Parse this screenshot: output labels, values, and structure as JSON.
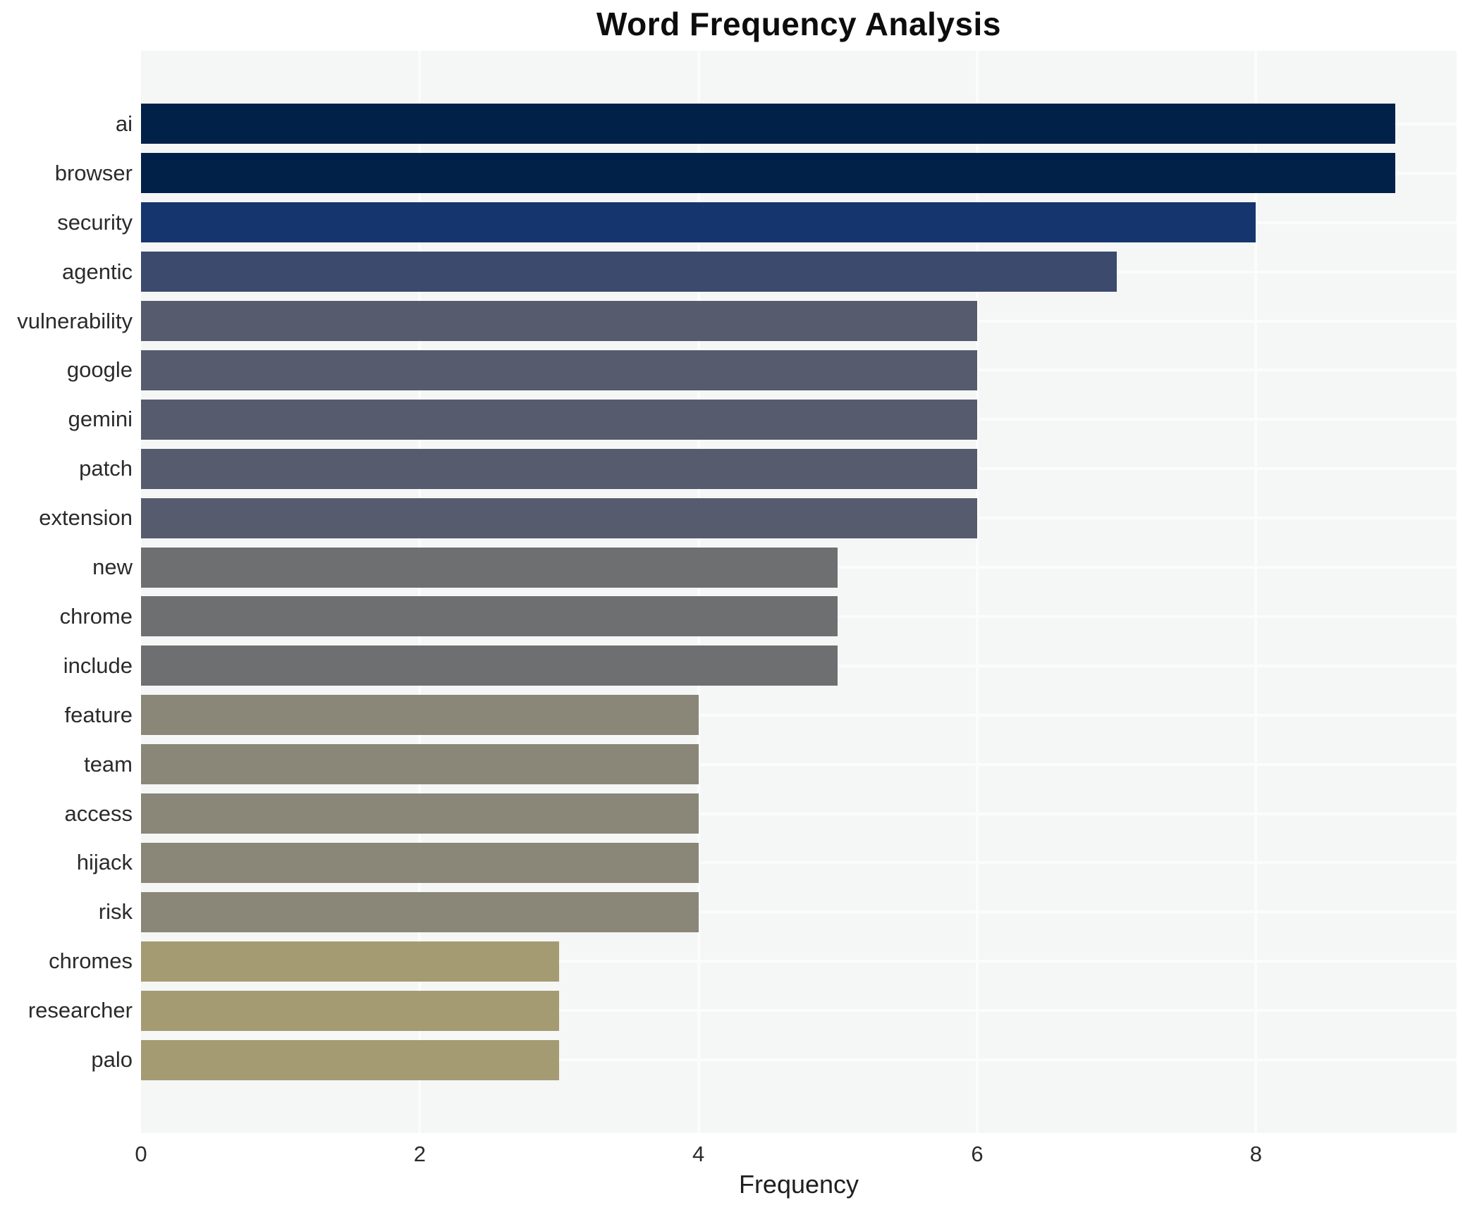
{
  "chart_data": {
    "type": "bar",
    "orientation": "horizontal",
    "title": "Word Frequency Analysis",
    "xlabel": "Frequency",
    "ylabel": "",
    "categories": [
      "ai",
      "browser",
      "security",
      "agentic",
      "vulnerability",
      "google",
      "gemini",
      "patch",
      "extension",
      "new",
      "chrome",
      "include",
      "feature",
      "team",
      "access",
      "hijack",
      "risk",
      "chromes",
      "researcher",
      "palo"
    ],
    "values": [
      9,
      9,
      8,
      7,
      6,
      6,
      6,
      6,
      6,
      5,
      5,
      5,
      4,
      4,
      4,
      4,
      4,
      3,
      3,
      3
    ],
    "bar_colors": [
      "#012149",
      "#012149",
      "#15356e",
      "#3c4a6e",
      "#565c6d",
      "#565c6d",
      "#565c6d",
      "#565c6d",
      "#565c6d",
      "#6e6f71",
      "#6e6f71",
      "#6e6f71",
      "#8a8778",
      "#8a8778",
      "#8a8778",
      "#8a8778",
      "#8a8778",
      "#a49b72",
      "#a49b72",
      "#a49b72"
    ],
    "xticks": [
      0,
      2,
      4,
      6,
      8
    ],
    "xlim": [
      0,
      9.44
    ],
    "grid": true,
    "legend": false,
    "plot_background": "#f5f6f6",
    "grid_color": "#fcfcfc",
    "text_color": "#2b2b2b",
    "title_color": "#0d0d0d"
  }
}
